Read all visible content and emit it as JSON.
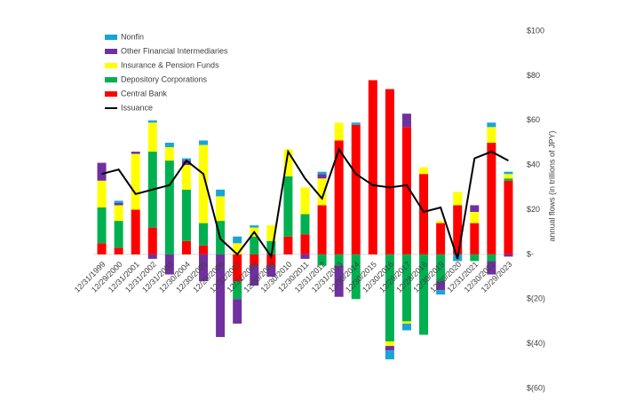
{
  "chart_data": {
    "type": "stacked-bar-line",
    "y_axis_label": "annual flows (in trillions of JPY)",
    "categories": [
      "12/31/1999",
      "12/29/2000",
      "12/31/2001",
      "12/31/2002",
      "12/31/2003",
      "12/30/2004",
      "12/30/2005",
      "12/29/2006",
      "12/31/2007",
      "12/31/2008",
      "12/30/2009",
      "12/30/2010",
      "12/30/2011",
      "12/31/2012",
      "12/31/2013",
      "12/30/2014",
      "12/30/2015",
      "12/30/2016",
      "12/29/2017",
      "12/28/2018",
      "12/30/2019",
      "12/30/2020",
      "12/31/2021",
      "12/30/2022",
      "12/29/2023"
    ],
    "series": [
      {
        "name": "Nonfin",
        "color": "#1aa3d8",
        "values": [
          0,
          1,
          0,
          1,
          2,
          1,
          2,
          3,
          3,
          1,
          0,
          0,
          0,
          1,
          0,
          1,
          0,
          -4,
          -3,
          0,
          -2,
          -3,
          0,
          2,
          1
        ]
      },
      {
        "name": "Other Financial Intermediaries",
        "color": "#7030a0",
        "values": [
          8,
          1,
          1,
          -2,
          -9,
          2,
          -12,
          -37,
          -11,
          -9,
          -5,
          0,
          -2,
          2,
          -14,
          0,
          0,
          -2,
          6,
          0,
          -4,
          0,
          3,
          -6,
          -1
        ]
      },
      {
        "name": "Insurance & Pension Funds",
        "color": "#ffff00",
        "values": [
          12,
          7,
          25,
          13,
          6,
          11,
          35,
          11,
          5,
          4,
          7,
          12,
          12,
          12,
          8,
          0,
          0,
          -2,
          -1,
          3,
          1,
          6,
          5,
          7,
          2
        ]
      },
      {
        "name": "Depository Corporations",
        "color": "#00b050",
        "values": [
          16,
          12,
          0,
          34,
          42,
          23,
          10,
          15,
          -8,
          8,
          6,
          27,
          9,
          -5,
          -5,
          -20,
          0,
          -39,
          -30,
          -36,
          -12,
          0,
          -3,
          -3,
          1
        ]
      },
      {
        "name": "Central Bank",
        "color": "#ff0000",
        "values": [
          5,
          3,
          20,
          12,
          0,
          6,
          4,
          0,
          -12,
          -5,
          -5,
          8,
          9,
          22,
          51,
          58,
          78,
          74,
          57,
          36,
          14,
          22,
          14,
          50,
          33
        ]
      },
      {
        "name": "Issuance",
        "type": "line",
        "color": "#000000",
        "values": [
          36,
          38,
          27,
          29,
          31,
          42,
          36,
          7,
          0,
          10,
          -1,
          46,
          34,
          25,
          47,
          36,
          31,
          30,
          31,
          19,
          21,
          -2,
          43,
          46,
          42
        ]
      }
    ],
    "ylim": [
      -60,
      100
    ],
    "yticks": [
      {
        "value": 100,
        "label": "$100"
      },
      {
        "value": 80,
        "label": "$80"
      },
      {
        "value": 60,
        "label": "$60"
      },
      {
        "value": 40,
        "label": "$40"
      },
      {
        "value": 20,
        "label": "$20"
      },
      {
        "value": 0,
        "label": "$-"
      },
      {
        "value": -20,
        "label": "$(20)"
      },
      {
        "value": -40,
        "label": "$(40)"
      },
      {
        "value": -60,
        "label": "$(60)"
      }
    ],
    "legend": "top-left"
  }
}
